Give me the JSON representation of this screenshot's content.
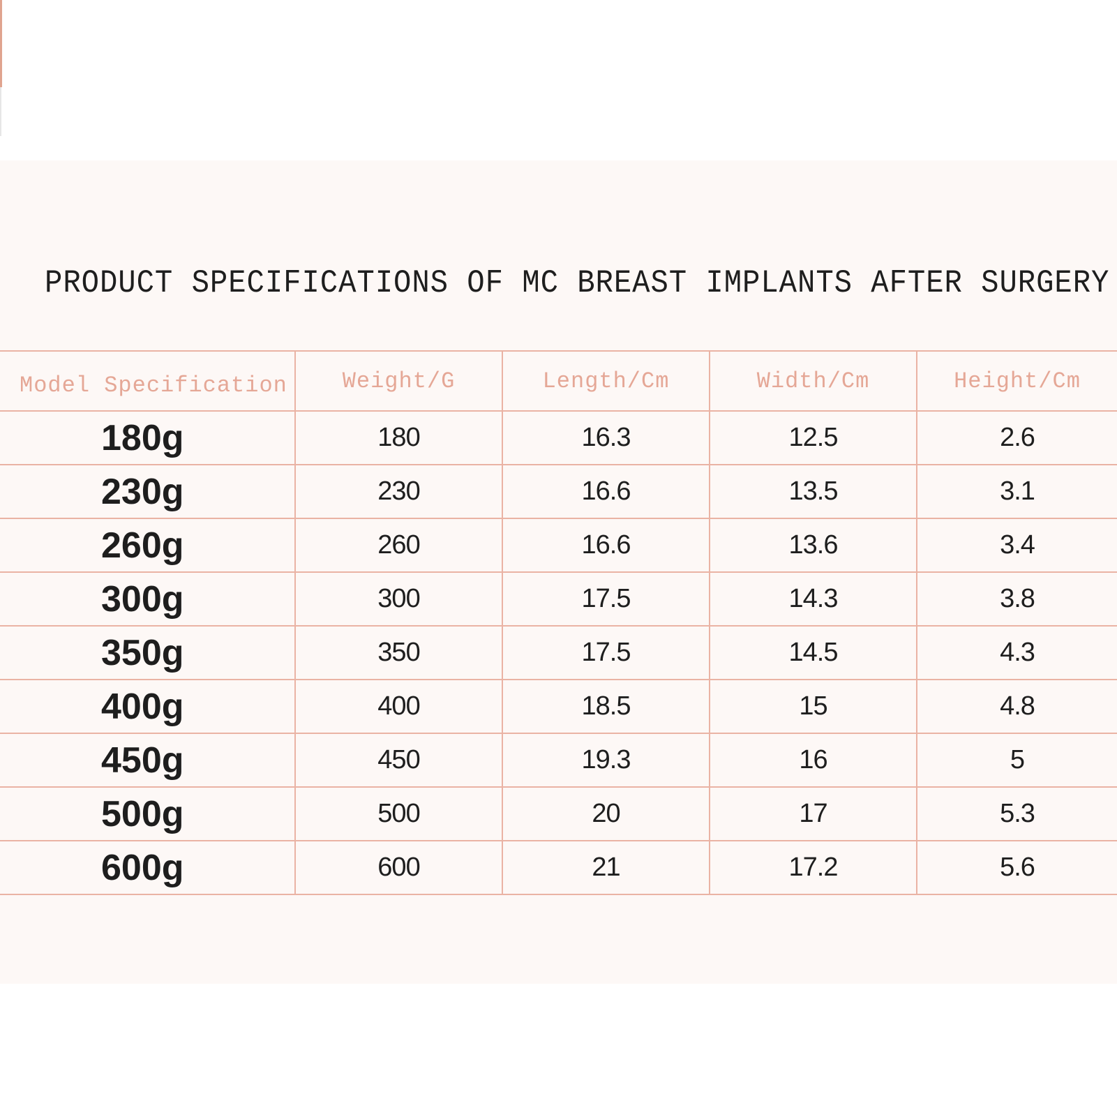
{
  "title": "PRODUCT SPECIFICATIONS OF MC BREAST IMPLANTS AFTER SURGERY",
  "table": {
    "headers": [
      "Model Specification",
      "Weight/G",
      "Length/Cm",
      "Width/Cm",
      "Height/Cm"
    ],
    "rows": [
      [
        "180g",
        "180",
        "16.3",
        "12.5",
        "2.6"
      ],
      [
        "230g",
        "230",
        "16.6",
        "13.5",
        "3.1"
      ],
      [
        "260g",
        "260",
        "16.6",
        "13.6",
        "3.4"
      ],
      [
        "300g",
        "300",
        "17.5",
        "14.3",
        "3.8"
      ],
      [
        "350g",
        "350",
        "17.5",
        "14.5",
        "4.3"
      ],
      [
        "400g",
        "400",
        "18.5",
        "15",
        "4.8"
      ],
      [
        "450g",
        "450",
        "19.3",
        "16",
        "5"
      ],
      [
        "500g",
        "500",
        "20",
        "17",
        "5.3"
      ],
      [
        "600g",
        "600",
        "21",
        "17.2",
        "5.6"
      ]
    ]
  },
  "colors": {
    "header_text": "#e5a796",
    "grid_lines": "#eab3a4",
    "panel_background": "#fdf8f6",
    "body_text": "#1e1e1e"
  }
}
